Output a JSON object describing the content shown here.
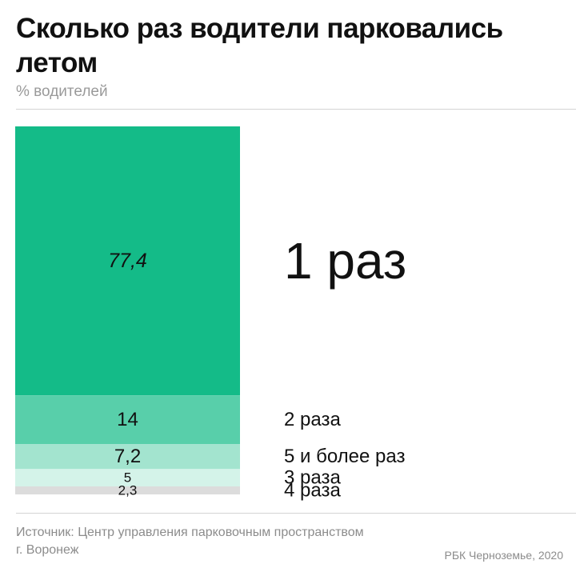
{
  "header": {
    "title": "Сколько раз водители парковались летом",
    "subtitle": "% водителей"
  },
  "footer": {
    "source_line1": "Источник: Центр управления парковочным пространством",
    "source_line2": "г. Воронеж",
    "credit": "РБК Черноземье, 2020"
  },
  "colors": {
    "seg1": "#14bb88",
    "seg2": "#58cfaa",
    "seg3": "#a3e4cf",
    "seg4": "#d4f3e9",
    "seg5": "#dcdcdc"
  },
  "chart_data": {
    "type": "bar",
    "stacked": true,
    "orientation": "vertical-stack",
    "unit": "% водителей",
    "segments": [
      {
        "label": "1 раз",
        "value": 77.4,
        "value_label": "77,4",
        "color": "#14bb88"
      },
      {
        "label": "2 раза",
        "value": 14,
        "value_label": "14",
        "color": "#58cfaa"
      },
      {
        "label": "5 и более раз",
        "value": 7.2,
        "value_label": "7,2",
        "color": "#a3e4cf"
      },
      {
        "label": "3 раза",
        "value": 5,
        "value_label": "5",
        "color": "#d4f3e9"
      },
      {
        "label": "4 раза",
        "value": 2.3,
        "value_label": "2,3",
        "color": "#dcdcdc"
      }
    ]
  }
}
